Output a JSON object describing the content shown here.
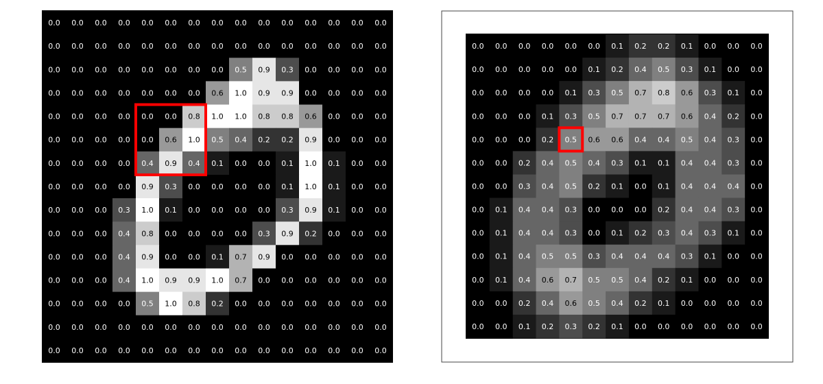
{
  "colors": {
    "background": "#ffffff",
    "highlight": "#ff0000",
    "frame": "#444444",
    "text_on_dark": "#ffffff",
    "text_on_light": "#000000"
  },
  "chart_data": [
    {
      "type": "heatmap",
      "title": "",
      "colormap": "gray",
      "value_range": [
        0,
        1
      ],
      "highlight": {
        "row_start": 4,
        "col_start": 4,
        "rows": 3,
        "cols": 3
      },
      "values": [
        [
          0.0,
          0.0,
          0.0,
          0.0,
          0.0,
          0.0,
          0.0,
          0.0,
          0.0,
          0.0,
          0.0,
          0.0,
          0.0,
          0.0,
          0.0
        ],
        [
          0.0,
          0.0,
          0.0,
          0.0,
          0.0,
          0.0,
          0.0,
          0.0,
          0.0,
          0.0,
          0.0,
          0.0,
          0.0,
          0.0,
          0.0
        ],
        [
          0.0,
          0.0,
          0.0,
          0.0,
          0.0,
          0.0,
          0.0,
          0.0,
          0.5,
          0.9,
          0.3,
          0.0,
          0.0,
          0.0,
          0.0
        ],
        [
          0.0,
          0.0,
          0.0,
          0.0,
          0.0,
          0.0,
          0.0,
          0.6,
          1.0,
          0.9,
          0.9,
          0.0,
          0.0,
          0.0,
          0.0
        ],
        [
          0.0,
          0.0,
          0.0,
          0.0,
          0.0,
          0.0,
          0.8,
          1.0,
          1.0,
          0.8,
          0.8,
          0.6,
          0.0,
          0.0,
          0.0
        ],
        [
          0.0,
          0.0,
          0.0,
          0.0,
          0.0,
          0.6,
          1.0,
          0.5,
          0.4,
          0.2,
          0.2,
          0.9,
          0.0,
          0.0,
          0.0
        ],
        [
          0.0,
          0.0,
          0.0,
          0.0,
          0.4,
          0.9,
          0.4,
          0.1,
          0.0,
          0.0,
          0.1,
          1.0,
          0.1,
          0.0,
          0.0
        ],
        [
          0.0,
          0.0,
          0.0,
          0.0,
          0.9,
          0.3,
          0.0,
          0.0,
          0.0,
          0.0,
          0.1,
          1.0,
          0.1,
          0.0,
          0.0
        ],
        [
          0.0,
          0.0,
          0.0,
          0.3,
          1.0,
          0.1,
          0.0,
          0.0,
          0.0,
          0.0,
          0.3,
          0.9,
          0.1,
          0.0,
          0.0
        ],
        [
          0.0,
          0.0,
          0.0,
          0.4,
          0.8,
          0.0,
          0.0,
          0.0,
          0.0,
          0.3,
          0.9,
          0.2,
          0.0,
          0.0,
          0.0
        ],
        [
          0.0,
          0.0,
          0.0,
          0.4,
          0.9,
          0.0,
          0.0,
          0.1,
          0.7,
          0.9,
          0.0,
          0.0,
          0.0,
          0.0,
          0.0
        ],
        [
          0.0,
          0.0,
          0.0,
          0.4,
          1.0,
          0.9,
          0.9,
          1.0,
          0.7,
          0.0,
          0.0,
          0.0,
          0.0,
          0.0,
          0.0
        ],
        [
          0.0,
          0.0,
          0.0,
          0.0,
          0.5,
          1.0,
          0.8,
          0.2,
          0.0,
          0.0,
          0.0,
          0.0,
          0.0,
          0.0,
          0.0
        ],
        [
          0.0,
          0.0,
          0.0,
          0.0,
          0.0,
          0.0,
          0.0,
          0.0,
          0.0,
          0.0,
          0.0,
          0.0,
          0.0,
          0.0,
          0.0
        ],
        [
          0.0,
          0.0,
          0.0,
          0.0,
          0.0,
          0.0,
          0.0,
          0.0,
          0.0,
          0.0,
          0.0,
          0.0,
          0.0,
          0.0,
          0.0
        ]
      ]
    },
    {
      "type": "heatmap",
      "title": "",
      "colormap": "gray",
      "value_range": [
        0,
        1
      ],
      "framed": true,
      "highlight": {
        "row_start": 4,
        "col_start": 4,
        "rows": 1,
        "cols": 1
      },
      "values": [
        [
          0.0,
          0.0,
          0.0,
          0.0,
          0.0,
          0.0,
          0.1,
          0.2,
          0.2,
          0.1,
          0.0,
          0.0,
          0.0
        ],
        [
          0.0,
          0.0,
          0.0,
          0.0,
          0.0,
          0.1,
          0.2,
          0.4,
          0.5,
          0.3,
          0.1,
          0.0,
          0.0
        ],
        [
          0.0,
          0.0,
          0.0,
          0.0,
          0.1,
          0.3,
          0.5,
          0.7,
          0.8,
          0.6,
          0.3,
          0.1,
          0.0
        ],
        [
          0.0,
          0.0,
          0.0,
          0.1,
          0.3,
          0.5,
          0.7,
          0.7,
          0.7,
          0.6,
          0.4,
          0.2,
          0.0
        ],
        [
          0.0,
          0.0,
          0.0,
          0.2,
          0.5,
          0.6,
          0.6,
          0.4,
          0.4,
          0.5,
          0.4,
          0.3,
          0.0
        ],
        [
          0.0,
          0.0,
          0.2,
          0.4,
          0.5,
          0.4,
          0.3,
          0.1,
          0.1,
          0.4,
          0.4,
          0.3,
          0.0
        ],
        [
          0.0,
          0.0,
          0.3,
          0.4,
          0.5,
          0.2,
          0.1,
          0.0,
          0.1,
          0.4,
          0.4,
          0.4,
          0.0
        ],
        [
          0.0,
          0.1,
          0.4,
          0.4,
          0.3,
          0.0,
          0.0,
          0.0,
          0.2,
          0.4,
          0.4,
          0.3,
          0.0
        ],
        [
          0.0,
          0.1,
          0.4,
          0.4,
          0.3,
          0.0,
          0.1,
          0.2,
          0.3,
          0.4,
          0.3,
          0.1,
          0.0
        ],
        [
          0.0,
          0.1,
          0.4,
          0.5,
          0.5,
          0.3,
          0.4,
          0.4,
          0.4,
          0.3,
          0.1,
          0.0,
          0.0
        ],
        [
          0.0,
          0.1,
          0.4,
          0.6,
          0.7,
          0.5,
          0.5,
          0.4,
          0.2,
          0.1,
          0.0,
          0.0,
          0.0
        ],
        [
          0.0,
          0.0,
          0.2,
          0.4,
          0.6,
          0.5,
          0.4,
          0.2,
          0.1,
          0.0,
          0.0,
          0.0,
          0.0
        ],
        [
          0.0,
          0.0,
          0.1,
          0.2,
          0.3,
          0.2,
          0.1,
          0.0,
          0.0,
          0.0,
          0.0,
          0.0,
          0.0
        ]
      ]
    }
  ]
}
